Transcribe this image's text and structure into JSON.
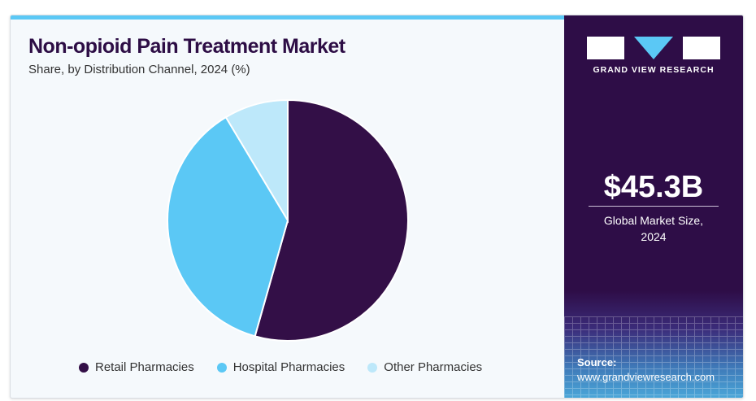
{
  "chart_data": {
    "type": "pie",
    "title": "Non-opioid Pain Treatment Market",
    "subtitle": "Share, by Distribution Channel, 2024 (%)",
    "categories": [
      "Retail Pharmacies",
      "Hospital Pharmacies",
      "Other Pharmacies"
    ],
    "values": [
      54.4,
      37.0,
      8.6
    ],
    "colors": [
      "#330f47",
      "#5bc8f5",
      "#bde8fa"
    ],
    "legend_position": "bottom"
  },
  "sidebar": {
    "logo_text": "GRAND VIEW RESEARCH",
    "market_size": "$45.3B",
    "market_size_label_line1": "Global Market Size,",
    "market_size_label_line2": "2024",
    "source_label": "Source:",
    "source_url": "www.grandviewresearch.com"
  }
}
